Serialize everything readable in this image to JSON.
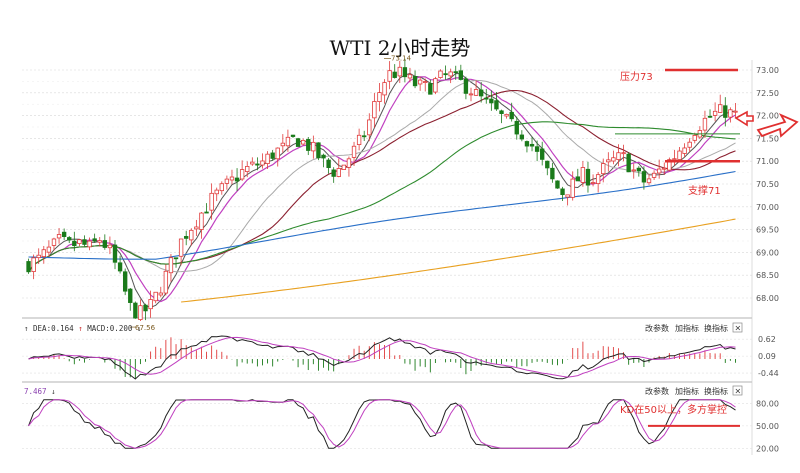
{
  "chart_data": {
    "type": "candlestick",
    "title": "WTI 2小时走势",
    "y_ticks": [
      "73.00",
      "72.50",
      "72.00",
      "71.50",
      "71.00",
      "70.50",
      "70.00",
      "69.50",
      "69.00",
      "68.50",
      "68.00"
    ],
    "ylim": [
      67.6,
      73.3
    ],
    "high_label": "73.14",
    "low_label": "67.56",
    "annotations": {
      "resistance": "压力73",
      "support": "支撑71",
      "kd_note": "KD在50以上，多方掌控"
    },
    "macd_panel": {
      "label_dea": "DEA:0.164",
      "label_macd": "MACD:0.200",
      "y_ticks": [
        "0.62",
        "0.09",
        "-0.44"
      ],
      "controls": [
        "改参数",
        "加指标",
        "换指标"
      ],
      "close": "×"
    },
    "kd_panel": {
      "label": "7.467",
      "y_ticks": [
        "80.00",
        "50.00",
        "20.00"
      ],
      "controls": [
        "改参数",
        "加指标",
        "换指标"
      ],
      "close": "×"
    },
    "colors": {
      "up": "#e03a3a",
      "down": "#1a7a1a",
      "resistance": "#e03030",
      "ma_fast": "#c040c0",
      "ma_mid": "#8b2030",
      "ma_long": "#2e8b2e",
      "ma_blue": "#2a70c8",
      "ma_orange": "#e8a020"
    },
    "close_path": [
      68.75,
      68.85,
      69.05,
      69.25,
      69.15,
      69.2,
      69.1,
      69.3,
      69.0,
      68.4,
      67.75,
      67.65,
      67.85,
      68.3,
      68.8,
      69.3,
      69.6,
      69.9,
      70.2,
      70.4,
      70.6,
      70.8,
      70.9,
      71.0,
      71.2,
      71.3,
      71.5,
      71.4,
      71.2,
      70.9,
      70.75,
      71.0,
      71.3,
      71.7,
      72.4,
      72.9,
      72.95,
      72.8,
      72.65,
      72.6,
      72.8,
      72.9,
      72.75,
      72.6,
      72.4,
      72.2,
      72.0,
      71.8,
      71.65,
      71.4,
      71.0,
      70.6,
      70.3,
      70.45,
      70.7,
      70.6,
      70.8,
      71.0,
      71.1,
      70.8,
      70.55,
      70.65,
      70.9,
      71.1,
      71.4,
      71.7,
      71.9,
      72.05,
      72.1,
      72.0
    ]
  }
}
